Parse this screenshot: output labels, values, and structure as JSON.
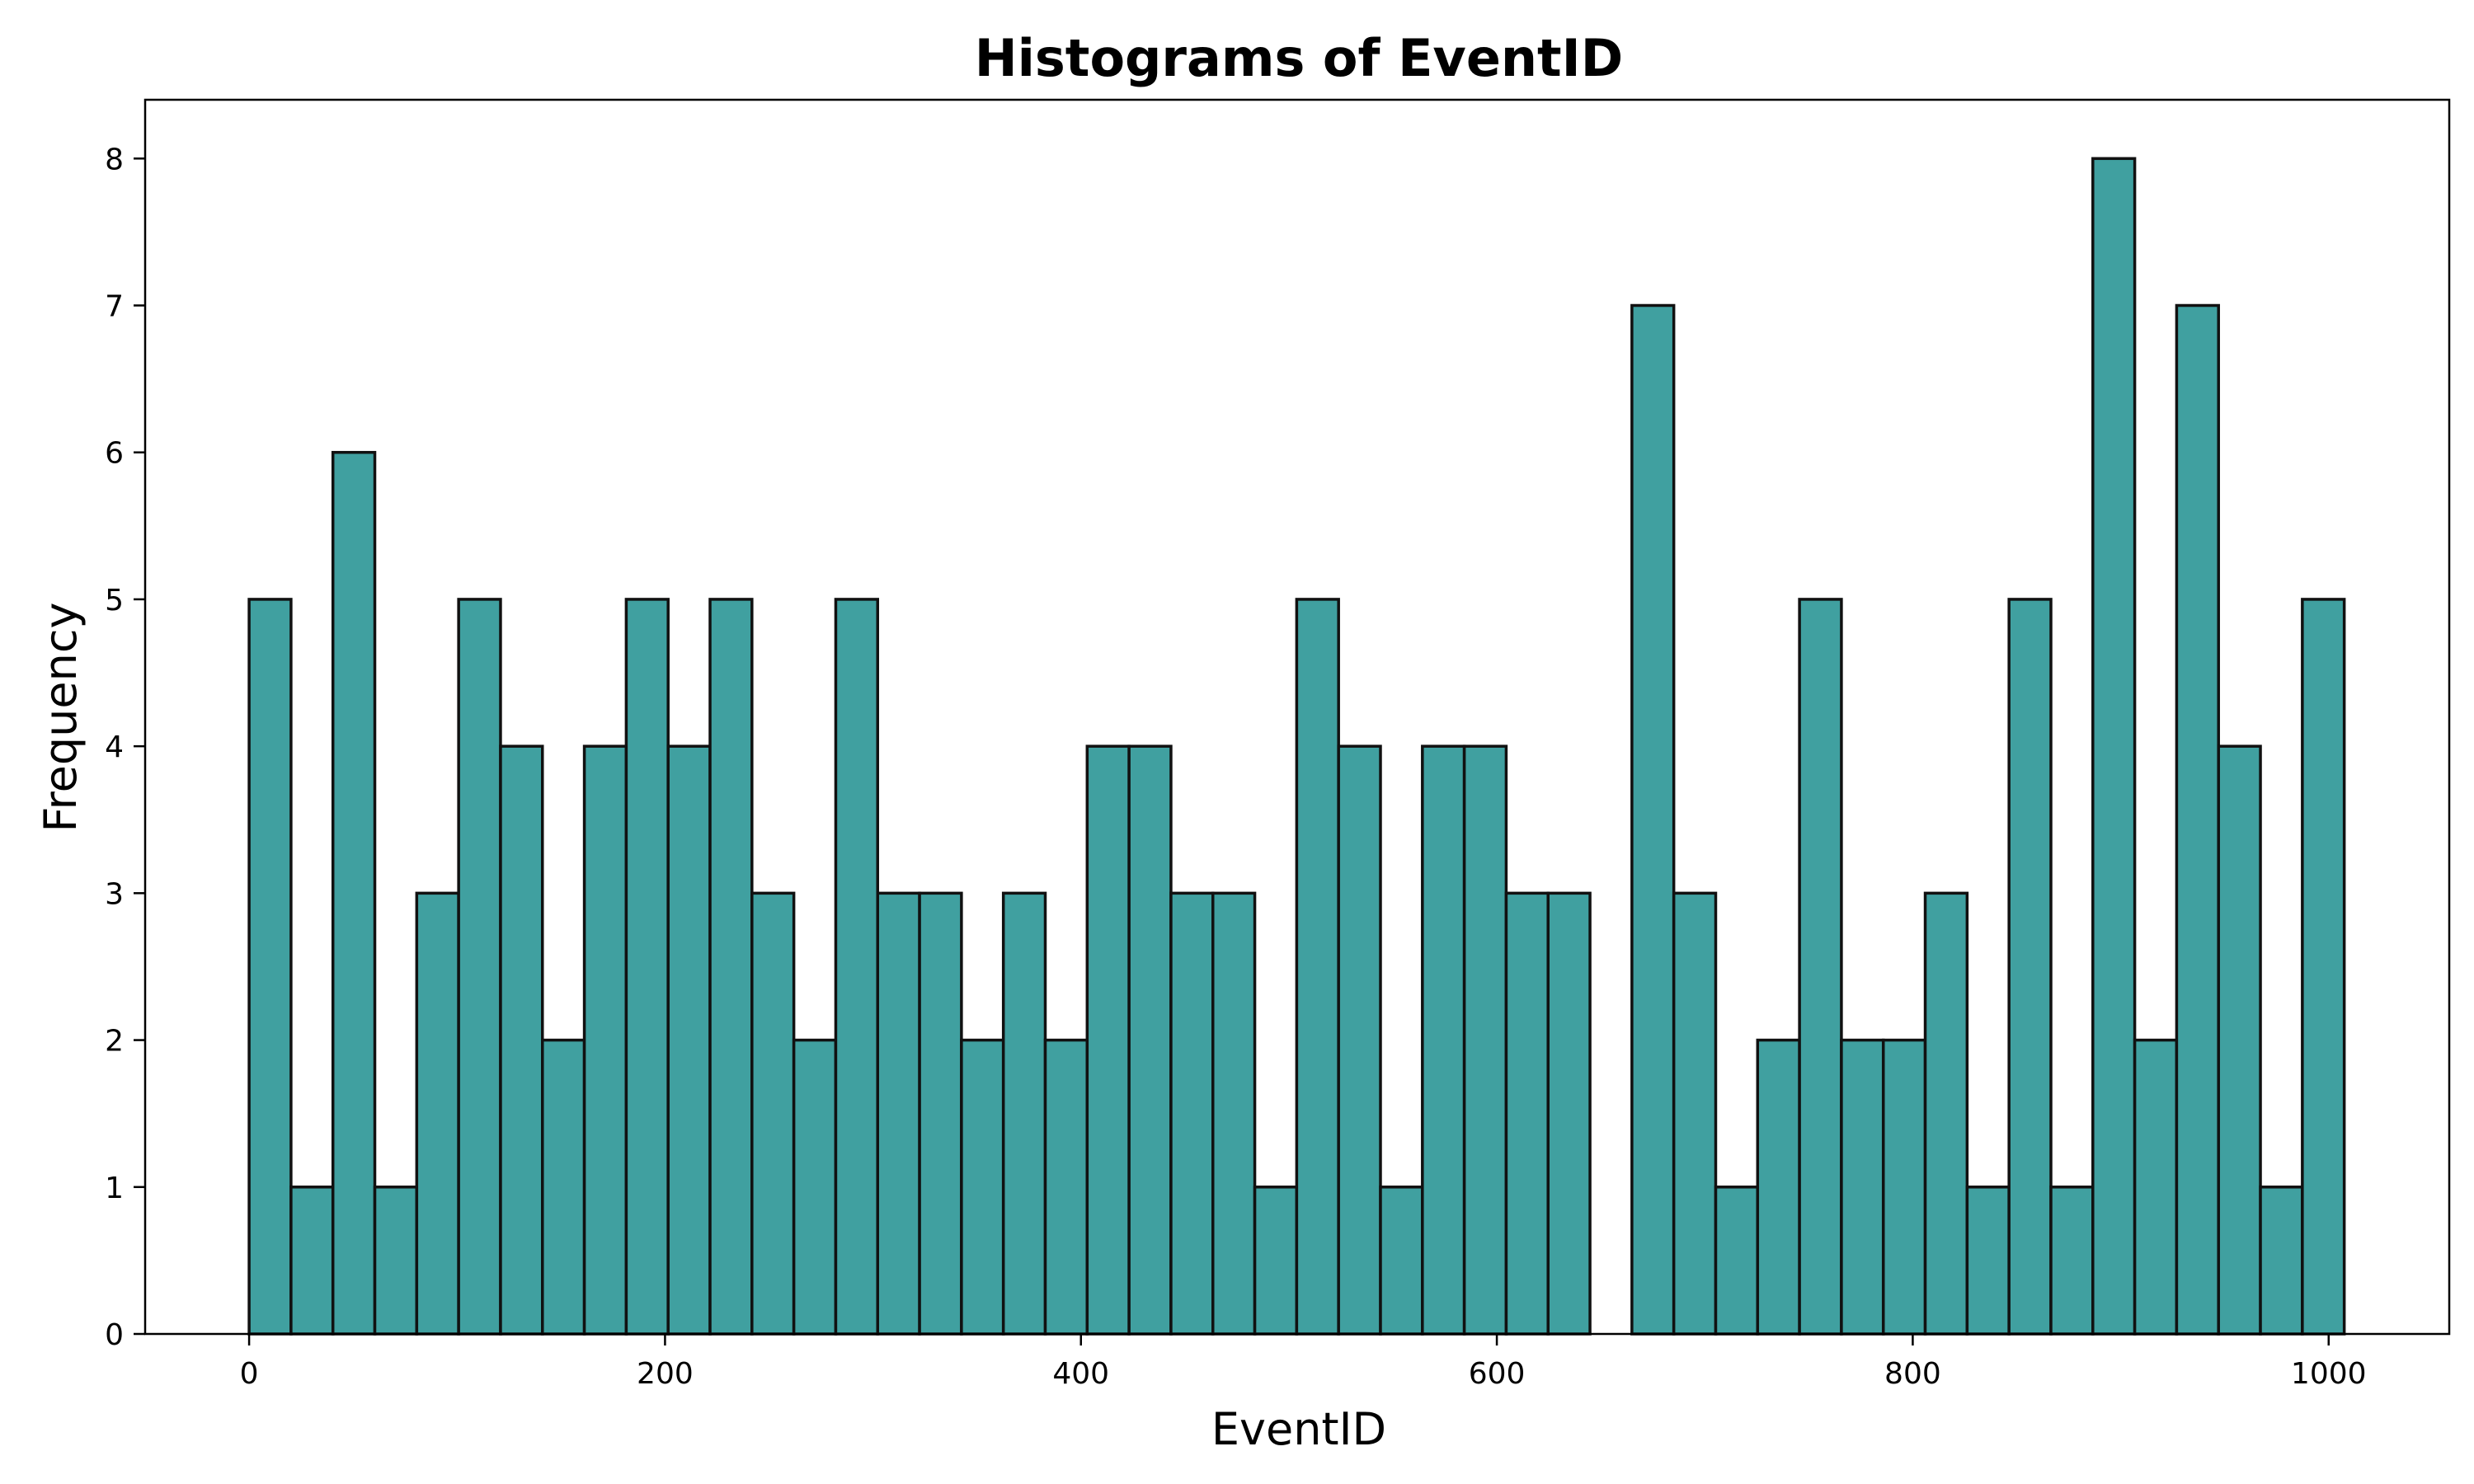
{
  "chart_data": {
    "type": "bar",
    "title": "Histograms of EventID",
    "xlabel": "EventID",
    "ylabel": "Frequency",
    "bin_start": 0,
    "bin_width": 20.15,
    "values": [
      5,
      1,
      6,
      1,
      3,
      5,
      4,
      2,
      4,
      5,
      4,
      5,
      3,
      2,
      5,
      3,
      3,
      2,
      3,
      2,
      4,
      4,
      3,
      3,
      1,
      5,
      4,
      1,
      4,
      4,
      3,
      3,
      0,
      7,
      3,
      1,
      2,
      5,
      2,
      2,
      3,
      1,
      5,
      1,
      8,
      2,
      7,
      4,
      1,
      5
    ],
    "xlim": [
      -50,
      1058
    ],
    "ylim": [
      0,
      8.4
    ],
    "xticks": [
      0,
      200,
      400,
      600,
      800,
      1000
    ],
    "yticks": [
      0,
      1,
      2,
      3,
      4,
      5,
      6,
      7,
      8
    ],
    "bar_color": "#40a0a0",
    "edge_color": "#111111",
    "grid": false,
    "legend": "none"
  }
}
